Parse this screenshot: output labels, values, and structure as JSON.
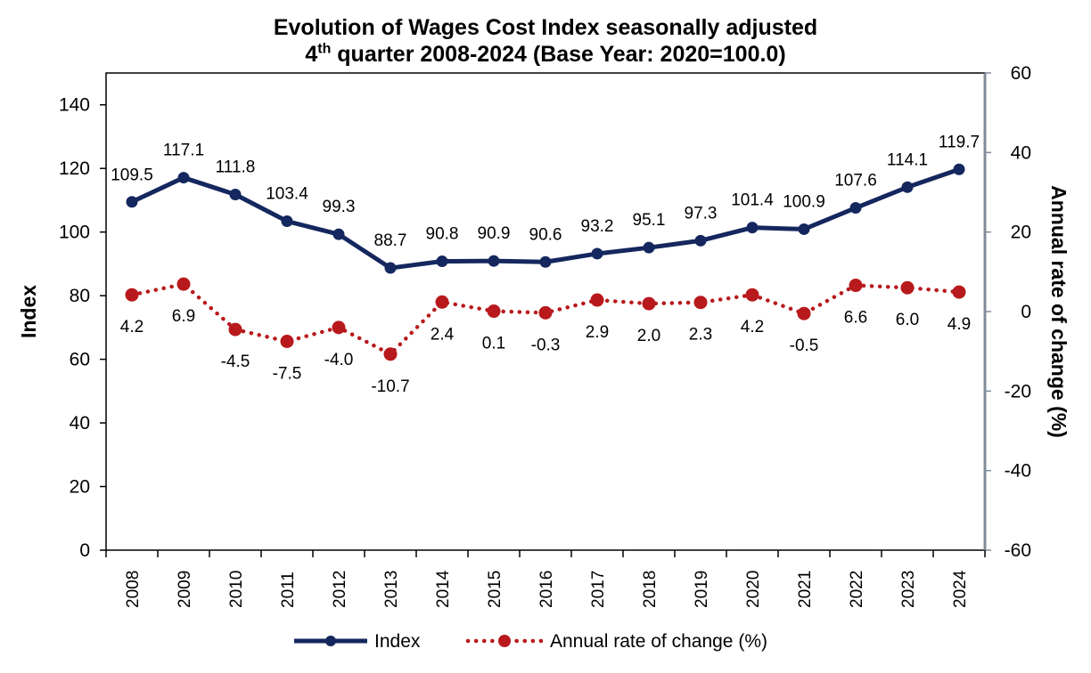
{
  "chart_data": {
    "type": "line",
    "title_line1": "Evolution of Wages Cost Index seasonally adjusted",
    "title_line2_prefix": "4",
    "title_line2_sup": "th",
    "title_line2_suffix": " quarter 2008-2024 (Base Year: 2020=100.0)",
    "xlabel": "",
    "ylabel": "Index",
    "y2label": "Annual rate of change (%)",
    "ylim": [
      0,
      150
    ],
    "yticks": [
      0,
      20,
      40,
      60,
      80,
      100,
      120,
      140
    ],
    "y2lim": [
      -60,
      60
    ],
    "y2ticks": [
      -60,
      -40,
      -20,
      0,
      20,
      40,
      60
    ],
    "categories": [
      "2008",
      "2009",
      "2010",
      "2011",
      "2012",
      "2013",
      "2014",
      "2015",
      "2016",
      "2017",
      "2018",
      "2019",
      "2020",
      "2021",
      "2022",
      "2023",
      "2024"
    ],
    "grid": false,
    "legend_position": "bottom",
    "series": [
      {
        "name": "Index",
        "axis": "left",
        "style": "solid",
        "color": "#14275E",
        "values": [
          109.5,
          117.1,
          111.8,
          103.4,
          99.3,
          88.7,
          90.8,
          90.9,
          90.6,
          93.2,
          95.1,
          97.3,
          101.4,
          100.9,
          107.6,
          114.1,
          119.7
        ],
        "labels": [
          "109.5",
          "117.1",
          "111.8",
          "103.4",
          "99.3",
          "88.7",
          "90.8",
          "90.9",
          "90.6",
          "93.2",
          "95.1",
          "97.3",
          "101.4",
          "100.9",
          "107.6",
          "114.1",
          "119.7"
        ]
      },
      {
        "name": "Annual rate of change (%)",
        "axis": "right",
        "style": "dotted",
        "color": "#B8191C",
        "values": [
          4.2,
          6.9,
          -4.5,
          -7.5,
          -4.0,
          -10.7,
          2.4,
          0.1,
          -0.3,
          2.9,
          2.0,
          2.3,
          4.2,
          -0.5,
          6.6,
          6.0,
          4.9
        ],
        "labels": [
          "4.2",
          "6.9",
          "-4.5",
          "-7.5",
          "-4.0",
          "-10.7",
          "2.4",
          "0.1",
          "-0.3",
          "2.9",
          "2.0",
          "2.3",
          "4.2",
          "-0.5",
          "6.6",
          "6.0",
          "4.9"
        ]
      }
    ]
  }
}
